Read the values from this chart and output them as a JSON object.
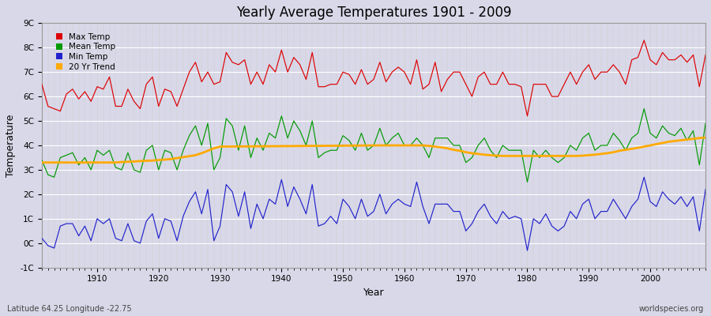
{
  "title": "Yearly Average Temperatures 1901 - 2009",
  "xlabel": "Year",
  "ylabel": "Temperature",
  "subtitle_left": "Latitude 64.25 Longitude -22.75",
  "subtitle_right": "worldspecies.org",
  "legend_entries": [
    "Max Temp",
    "Mean Temp",
    "Min Temp",
    "20 Yr Trend"
  ],
  "line_colors": [
    "#dd0000",
    "#009900",
    "#2222cc",
    "#ffaa00"
  ],
  "years": [
    1901,
    1902,
    1903,
    1904,
    1905,
    1906,
    1907,
    1908,
    1909,
    1910,
    1911,
    1912,
    1913,
    1914,
    1915,
    1916,
    1917,
    1918,
    1919,
    1920,
    1921,
    1922,
    1923,
    1924,
    1925,
    1926,
    1927,
    1928,
    1929,
    1930,
    1931,
    1932,
    1933,
    1934,
    1935,
    1936,
    1937,
    1938,
    1939,
    1940,
    1941,
    1942,
    1943,
    1944,
    1945,
    1946,
    1947,
    1948,
    1949,
    1950,
    1951,
    1952,
    1953,
    1954,
    1955,
    1956,
    1957,
    1958,
    1959,
    1960,
    1961,
    1962,
    1963,
    1964,
    1965,
    1966,
    1967,
    1968,
    1969,
    1970,
    1971,
    1972,
    1973,
    1974,
    1975,
    1976,
    1977,
    1978,
    1979,
    1980,
    1981,
    1982,
    1983,
    1984,
    1985,
    1986,
    1987,
    1988,
    1989,
    1990,
    1991,
    1992,
    1993,
    1994,
    1995,
    1996,
    1997,
    1998,
    1999,
    2000,
    2001,
    2002,
    2003,
    2004,
    2005,
    2006,
    2007,
    2008,
    2009
  ],
  "max_temp": [
    6.5,
    5.6,
    5.5,
    5.4,
    6.1,
    6.3,
    5.9,
    6.2,
    5.8,
    6.4,
    6.3,
    6.8,
    5.6,
    5.6,
    6.3,
    5.8,
    5.5,
    6.5,
    6.8,
    5.6,
    6.3,
    6.2,
    5.6,
    6.3,
    7.0,
    7.4,
    6.6,
    7.0,
    6.5,
    6.6,
    7.8,
    7.4,
    7.3,
    7.5,
    6.5,
    7.0,
    6.5,
    7.3,
    7.0,
    7.9,
    7.0,
    7.6,
    7.3,
    6.7,
    7.8,
    6.4,
    6.4,
    6.5,
    6.5,
    7.0,
    6.9,
    6.5,
    7.1,
    6.5,
    6.7,
    7.4,
    6.6,
    7.0,
    7.2,
    7.0,
    6.5,
    7.5,
    6.3,
    6.5,
    7.4,
    6.2,
    6.7,
    7.0,
    7.0,
    6.5,
    6.0,
    6.8,
    7.0,
    6.5,
    6.5,
    7.0,
    6.5,
    6.5,
    6.4,
    5.2,
    6.5,
    6.5,
    6.5,
    6.0,
    6.0,
    6.5,
    7.0,
    6.5,
    7.0,
    7.3,
    6.7,
    7.0,
    7.0,
    7.3,
    7.0,
    6.5,
    7.5,
    7.6,
    8.3,
    7.5,
    7.3,
    7.8,
    7.5,
    7.5,
    7.7,
    7.4,
    7.7,
    6.4,
    7.7
  ],
  "mean_temp": [
    3.4,
    2.8,
    2.7,
    3.5,
    3.6,
    3.7,
    3.2,
    3.5,
    3.0,
    3.8,
    3.6,
    3.8,
    3.1,
    3.0,
    3.7,
    3.0,
    2.9,
    3.8,
    4.0,
    3.0,
    3.8,
    3.7,
    3.0,
    3.8,
    4.4,
    4.8,
    4.0,
    4.9,
    3.0,
    3.5,
    5.1,
    4.8,
    3.8,
    4.8,
    3.5,
    4.3,
    3.8,
    4.5,
    4.3,
    5.2,
    4.3,
    5.0,
    4.6,
    4.0,
    5.0,
    3.5,
    3.7,
    3.8,
    3.8,
    4.4,
    4.2,
    3.8,
    4.5,
    3.8,
    4.0,
    4.7,
    4.0,
    4.3,
    4.5,
    4.0,
    4.0,
    4.3,
    4.0,
    3.5,
    4.3,
    4.3,
    4.3,
    4.0,
    4.0,
    3.3,
    3.5,
    4.0,
    4.3,
    3.8,
    3.5,
    4.0,
    3.8,
    3.8,
    3.8,
    2.5,
    3.8,
    3.5,
    3.8,
    3.5,
    3.3,
    3.5,
    4.0,
    3.8,
    4.3,
    4.5,
    3.8,
    4.0,
    4.0,
    4.5,
    4.2,
    3.8,
    4.3,
    4.5,
    5.5,
    4.5,
    4.3,
    4.8,
    4.5,
    4.4,
    4.7,
    4.2,
    4.6,
    3.2,
    4.9
  ],
  "min_temp": [
    0.2,
    -0.1,
    -0.2,
    0.7,
    0.8,
    0.8,
    0.3,
    0.7,
    0.1,
    1.0,
    0.8,
    1.0,
    0.2,
    0.1,
    0.8,
    0.1,
    0.0,
    0.9,
    1.2,
    0.2,
    1.0,
    0.9,
    0.1,
    1.1,
    1.7,
    2.1,
    1.2,
    2.2,
    0.1,
    0.7,
    2.4,
    2.1,
    1.1,
    2.1,
    0.6,
    1.6,
    1.0,
    1.8,
    1.6,
    2.6,
    1.5,
    2.3,
    1.8,
    1.2,
    2.4,
    0.7,
    0.8,
    1.1,
    0.8,
    1.8,
    1.5,
    1.0,
    1.8,
    1.1,
    1.3,
    2.0,
    1.2,
    1.6,
    1.8,
    1.6,
    1.5,
    2.5,
    1.5,
    0.8,
    1.6,
    1.6,
    1.6,
    1.3,
    1.3,
    0.5,
    0.8,
    1.3,
    1.6,
    1.1,
    0.8,
    1.3,
    1.0,
    1.1,
    1.0,
    -0.3,
    1.0,
    0.8,
    1.2,
    0.7,
    0.5,
    0.7,
    1.3,
    1.0,
    1.6,
    1.8,
    1.0,
    1.3,
    1.3,
    1.8,
    1.4,
    1.0,
    1.5,
    1.8,
    2.7,
    1.7,
    1.5,
    2.1,
    1.8,
    1.6,
    1.9,
    1.5,
    1.9,
    0.5,
    2.2
  ],
  "trend_years": [
    1901,
    1902,
    1903,
    1904,
    1905,
    1906,
    1907,
    1908,
    1909,
    1910,
    1911,
    1912,
    1913,
    1914,
    1915,
    1916,
    1917,
    1918,
    1919,
    1920,
    1921,
    1922,
    1923,
    1924,
    1925,
    1926,
    1927,
    1928,
    1929,
    1930,
    1956,
    1957,
    1958,
    1959,
    1960,
    1961,
    1962,
    1963,
    1964,
    1965,
    1966,
    1967,
    1968,
    1969,
    1970,
    1971,
    1972,
    1973,
    1974,
    1975,
    1976,
    1977,
    1978,
    1979,
    1980,
    1981,
    1982,
    1983,
    1984,
    1985,
    1986,
    1987,
    1988,
    1989,
    1990,
    1991,
    1992,
    1993,
    1994,
    1995,
    1996,
    1997,
    1998,
    1999,
    2000,
    2001,
    2002,
    2003,
    2004,
    2005,
    2006,
    2007,
    2008,
    2009
  ],
  "trend_values": [
    3.3,
    3.3,
    3.3,
    3.3,
    3.3,
    3.3,
    3.3,
    3.3,
    3.3,
    3.3,
    3.3,
    3.3,
    3.3,
    3.32,
    3.33,
    3.34,
    3.36,
    3.37,
    3.38,
    3.4,
    3.42,
    3.44,
    3.48,
    3.52,
    3.56,
    3.6,
    3.68,
    3.78,
    3.88,
    3.95,
    4.0,
    4.0,
    4.0,
    4.0,
    4.0,
    4.0,
    4.0,
    4.0,
    3.98,
    3.95,
    3.92,
    3.88,
    3.82,
    3.78,
    3.72,
    3.68,
    3.65,
    3.62,
    3.6,
    3.58,
    3.57,
    3.57,
    3.57,
    3.57,
    3.57,
    3.57,
    3.57,
    3.57,
    3.57,
    3.57,
    3.57,
    3.57,
    3.57,
    3.58,
    3.6,
    3.62,
    3.65,
    3.68,
    3.72,
    3.78,
    3.82,
    3.86,
    3.9,
    3.95,
    4.0,
    4.05,
    4.1,
    4.15,
    4.18,
    4.21,
    4.24,
    4.27,
    4.3,
    4.32
  ],
  "bg_color": "#d8d8e8",
  "grid_color": "#ffffff",
  "ylim": [
    -1,
    9
  ],
  "yticks": [
    -1,
    0,
    1,
    2,
    3,
    4,
    5,
    6,
    7,
    8,
    9
  ],
  "ytick_labels": [
    "-1C",
    "0C",
    "1C",
    "2C",
    "3C",
    "4C",
    "5C",
    "6C",
    "7C",
    "8C",
    "9C"
  ],
  "xticks": [
    1910,
    1920,
    1930,
    1940,
    1950,
    1960,
    1970,
    1980,
    1990,
    2000
  ],
  "xlim": [
    1901,
    2009
  ]
}
